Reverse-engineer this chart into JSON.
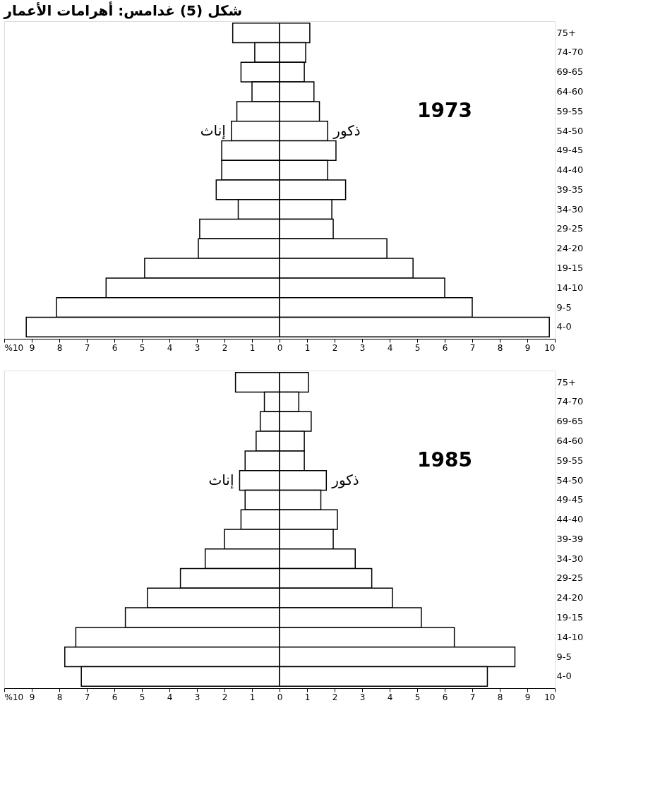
{
  "chart_data": [
    {
      "type": "bar",
      "orientation": "horizontal",
      "stacked": true,
      "title": "شكل (5) غدامس: أهرامات الأعمار",
      "categories": [
        "75+",
        "74-70",
        "69-65",
        "64-60",
        "59-55",
        "54-50",
        "49-45",
        "44-40",
        "39-35",
        "34-30",
        "29-25",
        "24-20",
        "19-15",
        "14-10",
        "9-5",
        "4-0"
      ],
      "series": [
        {
          "name": "إناث",
          "color": "#ffffff",
          "values": [
            -1.7,
            -0.9,
            -1.4,
            -1.0,
            -1.55,
            -1.75,
            -2.1,
            -2.1,
            -2.3,
            -1.5,
            -2.9,
            -2.95,
            -4.9,
            -6.3,
            -8.1,
            -9.2
          ]
        },
        {
          "name": "ذكور",
          "color": "#ffffff",
          "values": [
            1.1,
            0.95,
            0.9,
            1.25,
            1.45,
            1.75,
            2.05,
            1.75,
            2.4,
            1.9,
            1.95,
            3.9,
            4.85,
            6.0,
            7.0,
            9.8
          ]
        }
      ],
      "xlim": [
        -10,
        10
      ],
      "xticks": [
        {
          "value": -10,
          "label": "%10"
        },
        {
          "value": -9,
          "label": "9"
        },
        {
          "value": -8,
          "label": "8"
        },
        {
          "value": -7,
          "label": "7"
        },
        {
          "value": -6,
          "label": "6"
        },
        {
          "value": -5,
          "label": "5"
        },
        {
          "value": -4,
          "label": "4"
        },
        {
          "value": -3,
          "label": "3"
        },
        {
          "value": -2,
          "label": "2"
        },
        {
          "value": -1,
          "label": "1"
        },
        0,
        1,
        2,
        3,
        4,
        5,
        6,
        7,
        8,
        9,
        10
      ],
      "annotations": [
        "1973"
      ]
    },
    {
      "type": "bar",
      "orientation": "horizontal",
      "stacked": true,
      "categories": [
        "75+",
        "74-70",
        "69-65",
        "64-60",
        "59-55",
        "54-50",
        "49-45",
        "44-40",
        "39-39",
        "34-30",
        "29-25",
        "24-20",
        "19-15",
        "14-10",
        "9-5",
        "4-0"
      ],
      "series": [
        {
          "name": "إناث",
          "color": "#ffffff",
          "values": [
            -1.6,
            -0.55,
            -0.7,
            -0.85,
            -1.25,
            -1.45,
            -1.25,
            -1.4,
            -2.0,
            -2.7,
            -3.6,
            -4.8,
            -5.6,
            -7.4,
            -7.8,
            -7.2
          ]
        },
        {
          "name": "ذكور",
          "color": "#ffffff",
          "values": [
            1.05,
            0.7,
            1.15,
            0.9,
            0.9,
            1.7,
            1.5,
            2.1,
            1.95,
            2.75,
            3.35,
            4.1,
            5.15,
            6.35,
            8.55,
            7.55
          ]
        }
      ],
      "xlim": [
        -10,
        10
      ],
      "xticks": [
        {
          "value": -10,
          "label": "%10"
        },
        {
          "value": -9,
          "label": "9"
        },
        {
          "value": -8,
          "label": "8"
        },
        {
          "value": -7,
          "label": "7"
        },
        {
          "value": -6,
          "label": "6"
        },
        {
          "value": -5,
          "label": "5"
        },
        {
          "value": -4,
          "label": "4"
        },
        {
          "value": -3,
          "label": "3"
        },
        {
          "value": -2,
          "label": "2"
        },
        {
          "value": -1,
          "label": "1"
        },
        0,
        1,
        2,
        3,
        4,
        5,
        6,
        7,
        8,
        9,
        10
      ],
      "annotations": [
        "1985"
      ]
    }
  ]
}
